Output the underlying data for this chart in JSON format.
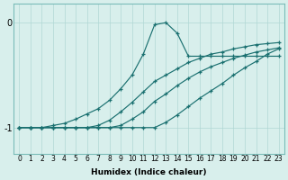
{
  "xlabel": "Humidex (Indice chaleur)",
  "xlim": [
    -0.5,
    23.5
  ],
  "ylim": [
    -1.25,
    0.18
  ],
  "yticks": [
    -1,
    0
  ],
  "xticks": [
    0,
    1,
    2,
    3,
    4,
    5,
    6,
    7,
    8,
    9,
    10,
    11,
    12,
    13,
    14,
    15,
    16,
    17,
    18,
    19,
    20,
    21,
    22,
    23
  ],
  "background_color": "#d8efec",
  "grid_color": "#b0d8d4",
  "line_color": "#1a7070",
  "figsize": [
    3.2,
    2.0
  ],
  "dpi": 100,
  "lines": [
    [
      -1.0,
      -1.0,
      -1.0,
      -1.0,
      -1.0,
      -1.0,
      -1.0,
      -1.0,
      -1.0,
      -1.0,
      -1.0,
      -1.0,
      -1.0,
      -0.95,
      -0.88,
      -0.8,
      -0.72,
      -0.65,
      -0.58,
      -0.5,
      -0.43,
      -0.37,
      -0.3,
      -0.25
    ],
    [
      -1.0,
      -1.0,
      -1.0,
      -1.0,
      -1.0,
      -1.0,
      -1.0,
      -1.0,
      -1.0,
      -0.98,
      -0.92,
      -0.85,
      -0.75,
      -0.68,
      -0.6,
      -0.53,
      -0.47,
      -0.42,
      -0.38,
      -0.34,
      -0.31,
      -0.28,
      -0.26,
      -0.24
    ],
    [
      -1.0,
      -1.0,
      -1.0,
      -1.0,
      -1.0,
      -1.0,
      -1.0,
      -0.98,
      -0.93,
      -0.85,
      -0.76,
      -0.66,
      -0.56,
      -0.5,
      -0.44,
      -0.38,
      -0.34,
      -0.3,
      -0.28,
      -0.25,
      -0.23,
      -0.21,
      -0.2,
      -0.19
    ],
    [
      -1.0,
      -1.0,
      -1.0,
      -0.98,
      -0.96,
      -0.92,
      -0.87,
      -0.82,
      -0.74,
      -0.63,
      -0.5,
      -0.3,
      -0.02,
      0.0,
      -0.1,
      -0.32,
      -0.32,
      -0.32,
      -0.32,
      -0.32,
      -0.32,
      -0.32,
      -0.32,
      -0.32
    ]
  ]
}
